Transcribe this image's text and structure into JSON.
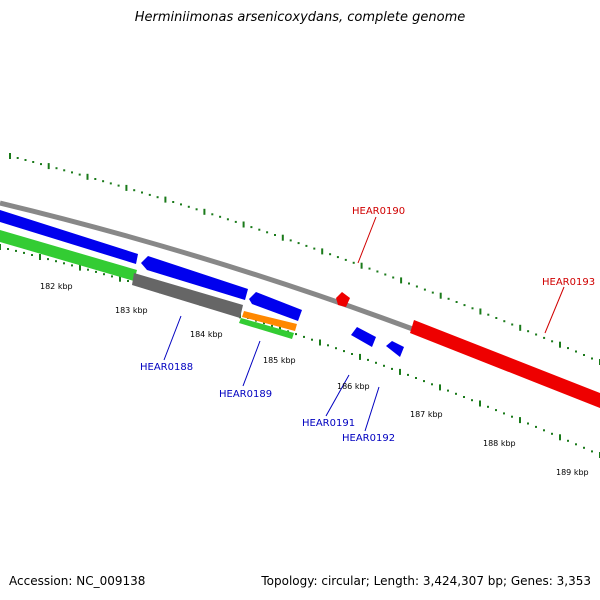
{
  "title": "Herminiimonas arsenicoxydans, complete genome",
  "footer": {
    "accession": "Accession: NC_009138",
    "stats": "Topology: circular; Length: 3,424,307 bp; Genes: 3,353"
  },
  "colors": {
    "forward_label": "#d00000",
    "reverse_label": "#0000c0",
    "tick": "#1a7a1a",
    "backbone": "#888888",
    "blue_gene": "#0000ee",
    "red_gene": "#ee0000",
    "green_gene": "#33cc33",
    "gray_gene": "#666666",
    "orange_gene": "#ff8800"
  },
  "scale_labels": [
    "182 kbp",
    "183 kbp",
    "184 kbp",
    "185 kbp",
    "186 kbp",
    "187 kbp",
    "188 kbp",
    "189 kbp"
  ],
  "genes": [
    {
      "label": "HEAR0188",
      "strand": "reverse"
    },
    {
      "label": "HEAR0189",
      "strand": "reverse"
    },
    {
      "label": "HEAR0190",
      "strand": "forward"
    },
    {
      "label": "HEAR0191",
      "strand": "reverse"
    },
    {
      "label": "HEAR0192",
      "strand": "reverse"
    },
    {
      "label": "HEAR0193",
      "strand": "forward"
    }
  ]
}
